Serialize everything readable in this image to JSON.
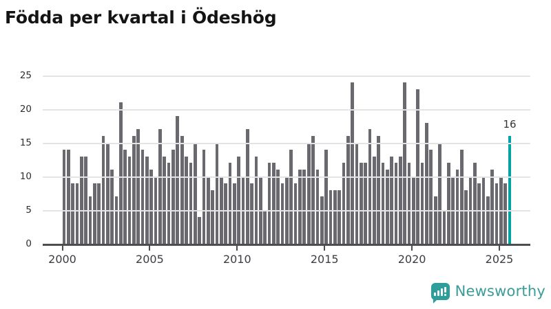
{
  "title": "Födda per kvartal i Ödeshög",
  "chart_data": {
    "type": "bar",
    "title": "Födda per kvartal i Ödeshög",
    "xlabel": "",
    "ylabel": "",
    "x_start": "2000-Q1",
    "x_end": "2025-Q3",
    "x_frequency": "quarterly",
    "values": [
      14,
      14,
      9,
      9,
      13,
      13,
      7,
      9,
      9,
      16,
      15,
      11,
      7,
      21,
      14,
      13,
      16,
      17,
      14,
      13,
      11,
      10,
      17,
      13,
      12,
      14,
      19,
      16,
      13,
      12,
      15,
      4,
      14,
      10,
      8,
      15,
      10,
      9,
      12,
      9,
      13,
      10,
      17,
      9,
      13,
      10,
      5,
      12,
      12,
      11,
      9,
      10,
      14,
      9,
      11,
      11,
      15,
      16,
      11,
      7,
      14,
      8,
      8,
      8,
      12,
      16,
      24,
      15,
      12,
      12,
      17,
      13,
      16,
      12,
      11,
      13,
      12,
      13,
      24,
      12,
      10,
      23,
      12,
      18,
      14,
      7,
      15,
      5,
      12,
      10,
      11,
      14,
      8,
      10,
      12,
      9,
      10,
      7,
      11,
      9,
      10,
      9,
      16
    ],
    "yticks": [
      0,
      5,
      10,
      15,
      20,
      25
    ],
    "ylim": [
      0,
      25
    ],
    "xticks": [
      "2000",
      "2005",
      "2010",
      "2015",
      "2020",
      "2025"
    ],
    "grid": "horizontal",
    "legend": "none",
    "highlight": {
      "index": 102,
      "value": 16,
      "label": "16"
    },
    "colors": {
      "bar": "#69696f",
      "highlight_bar": "#00a2a4",
      "axis": "#4d4d4d",
      "grid": "#e4e4e4",
      "tick_label": "#3c3c42"
    }
  },
  "footer": {
    "brand": "Newsworthy",
    "brand_color": "#3a9c98",
    "icon_color": "#2e9e9a"
  }
}
